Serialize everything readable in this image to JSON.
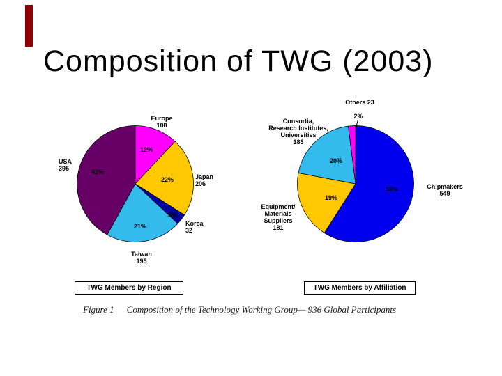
{
  "title": "Composition of TWG (2003)",
  "caption": {
    "figure_label": "Figure 1",
    "text": "Composition of the Technology Working Group— 936 Global Participants"
  },
  "accent_color": "#8B0000",
  "chart_data": [
    {
      "type": "pie",
      "title": "TWG Members by Region",
      "total": 936,
      "legend_position": "none",
      "slices": [
        {
          "label": "Europe",
          "value": 108,
          "pct": 12,
          "pct_label": "12%",
          "color": "#FF00FF"
        },
        {
          "label": "Japan",
          "value": 206,
          "pct": 22,
          "pct_label": "22%",
          "color": "#FFC800"
        },
        {
          "label": "Korea",
          "value": 32,
          "pct": 3,
          "pct_label": "3%",
          "color": "#0000A0"
        },
        {
          "label": "Taiwan",
          "value": 195,
          "pct": 21,
          "pct_label": "21%",
          "color": "#33BBEE"
        },
        {
          "label": "USA",
          "value": 395,
          "pct": 42,
          "pct_label": "42%",
          "color": "#660066"
        }
      ]
    },
    {
      "type": "pie",
      "title": "TWG Members by Affiliation",
      "total": 936,
      "legend_position": "none",
      "slices": [
        {
          "label": "Chipmakers",
          "value": 549,
          "pct": 59,
          "pct_label": "59%",
          "color": "#0000EE"
        },
        {
          "label": "Equipment/ Materials Suppliers",
          "label_lines": [
            "Equipment/",
            "Materials",
            "Suppliers"
          ],
          "value": 181,
          "pct": 19,
          "pct_label": "19%",
          "color": "#FFC800"
        },
        {
          "label": "Consortia, Research Institutes, Universities",
          "label_lines": [
            "Consortia,",
            "Research Institutes,",
            "Universities"
          ],
          "value": 183,
          "pct": 20,
          "pct_label": "20%",
          "color": "#33BBEE"
        },
        {
          "label": "Others",
          "value": 23,
          "pct": 2,
          "pct_label": "2%",
          "color": "#FF00FF"
        }
      ]
    }
  ]
}
